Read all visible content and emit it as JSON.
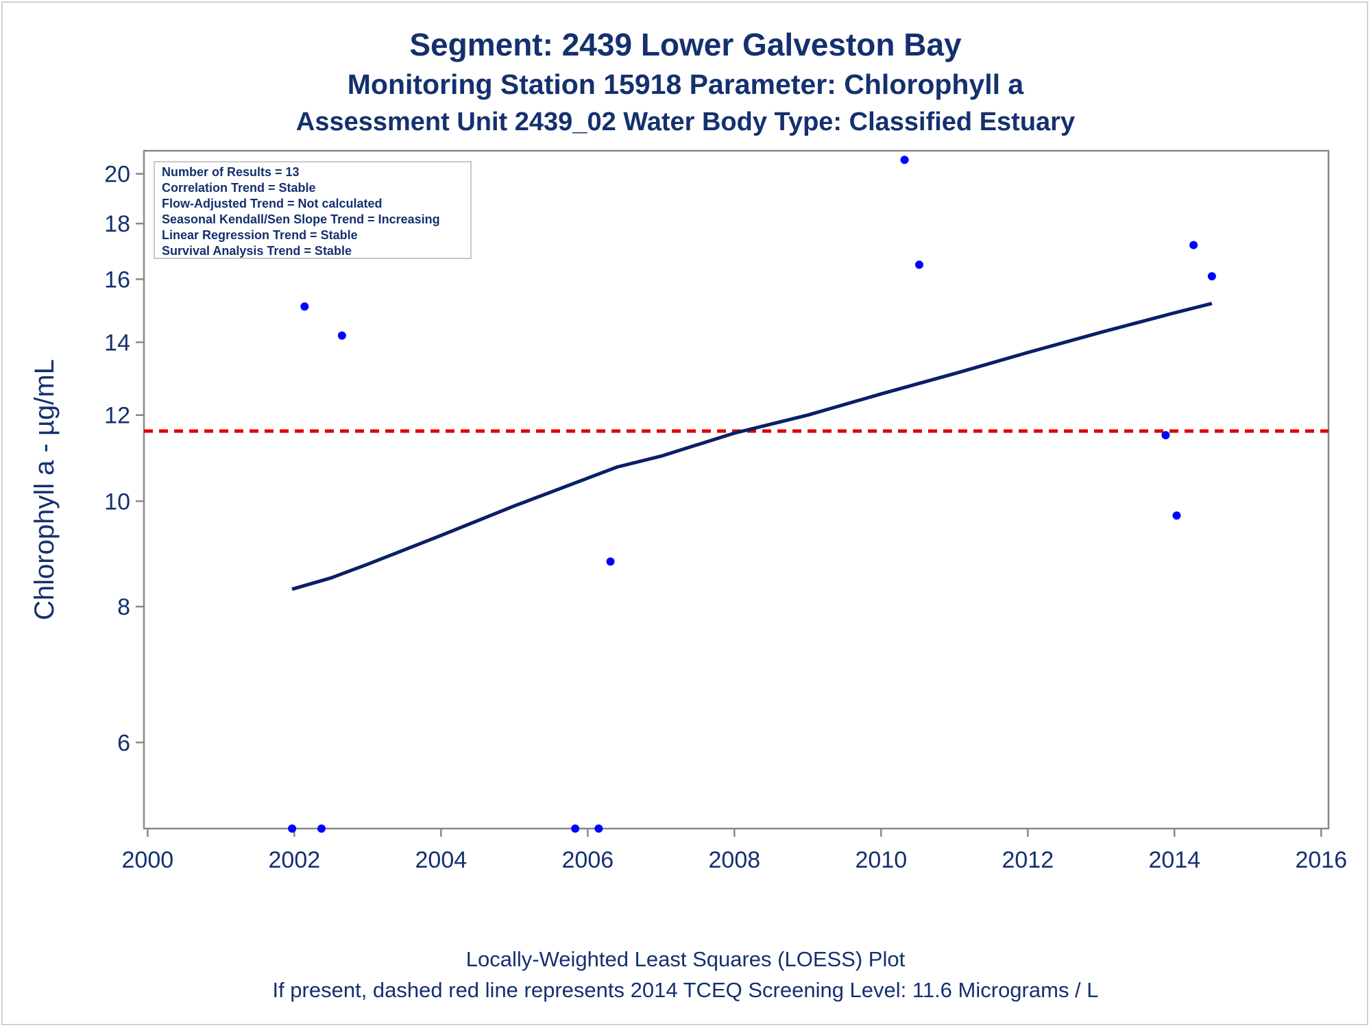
{
  "titles": {
    "line1": "Segment: 2439  Lower Galveston Bay",
    "line2": "Monitoring Station 15918 Parameter: Chlorophyll a",
    "line3": "Assessment Unit 2439_02   Water Body Type: Classified Estuary"
  },
  "footer": {
    "line1": "Locally-Weighted Least Squares (LOESS) Plot",
    "line2": "If present, dashed red line represents 2014 TCEQ Screening Level: 11.6 Micrograms / L"
  },
  "inset": [
    "Number of Results = 13",
    "Correlation Trend = Stable",
    "Flow-Adjusted Trend = Not calculated",
    "Seasonal Kendall/Sen Slope Trend = Increasing",
    "Linear Regression Trend = Stable",
    "Survival Analysis Trend = Stable"
  ],
  "chart_data": {
    "type": "scatter",
    "ylabel": "Chlorophyll a -  µg/mL",
    "xlabel": "",
    "y_scale": "log",
    "xlim": [
      1999.95,
      2016.1
    ],
    "ylim": [
      5.0,
      21.0
    ],
    "x_ticks": [
      2000,
      2002,
      2004,
      2006,
      2008,
      2010,
      2012,
      2014,
      2016
    ],
    "x_tick_labels": [
      "2000",
      "2002",
      "2004",
      "2006",
      "2008",
      "2010",
      "2012",
      "2014",
      "2016"
    ],
    "y_ticks": [
      6,
      8,
      10,
      12,
      14,
      16,
      18,
      20
    ],
    "y_tick_labels": [
      "6",
      "8",
      "10",
      "12",
      "14",
      "16",
      "18",
      "20"
    ],
    "points": [
      {
        "x": 2001.97,
        "y": 5.0
      },
      {
        "x": 2002.14,
        "y": 15.1
      },
      {
        "x": 2002.37,
        "y": 5.0
      },
      {
        "x": 2002.65,
        "y": 14.2
      },
      {
        "x": 2005.83,
        "y": 5.0
      },
      {
        "x": 2006.15,
        "y": 5.0
      },
      {
        "x": 2006.31,
        "y": 8.8
      },
      {
        "x": 2010.32,
        "y": 20.6
      },
      {
        "x": 2010.52,
        "y": 16.5
      },
      {
        "x": 2013.88,
        "y": 11.5
      },
      {
        "x": 2014.03,
        "y": 9.7
      },
      {
        "x": 2014.26,
        "y": 17.2
      },
      {
        "x": 2014.51,
        "y": 16.1
      }
    ],
    "loess": {
      "name": "LOESS",
      "x": [
        2001.97,
        2002.5,
        2003.0,
        2004.0,
        2005.0,
        2006.0,
        2006.4,
        2007.0,
        2008.0,
        2009.0,
        2010.0,
        2011.0,
        2012.0,
        2013.0,
        2014.0,
        2014.51
      ],
      "y": [
        8.3,
        8.5,
        8.75,
        9.3,
        9.9,
        10.5,
        10.75,
        11.0,
        11.55,
        12.0,
        12.55,
        13.1,
        13.7,
        14.3,
        14.9,
        15.2
      ]
    },
    "screening_level": {
      "value": 11.6,
      "color": "#dd0000",
      "style": "dashed"
    },
    "colors": {
      "points": "#0000ff",
      "loess": "#0a1f66",
      "axis": "#888888",
      "text": "#14306e"
    }
  }
}
